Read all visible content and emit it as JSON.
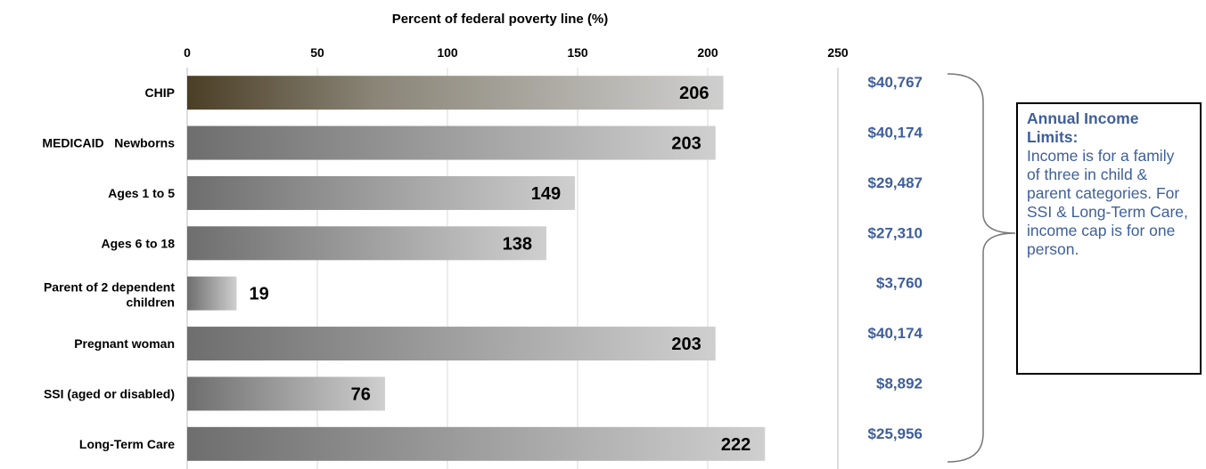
{
  "chart_data": {
    "type": "bar",
    "orientation": "horizontal",
    "title": "Percent of federal poverty line (%)",
    "xlim": [
      0,
      250
    ],
    "x_ticks": [
      "0",
      "50",
      "100",
      "150",
      "200",
      "250"
    ],
    "categories": [
      "CHIP",
      "MEDICAID   Newborns",
      "Ages 1 to 5",
      "Ages 6 to 18",
      "Parent of 2 dependent children",
      "Pregnant woman",
      "SSI (aged or disabled)",
      "Long-Term Care"
    ],
    "values": [
      206,
      203,
      149,
      138,
      19,
      203,
      76,
      222
    ],
    "value_labels": [
      "206",
      "203",
      "149",
      "138",
      "19",
      "203",
      "76",
      "222"
    ],
    "income_limits": [
      "$40,767",
      "$40,174",
      "$29,487",
      "$27,310",
      "$3,760",
      "$40,174",
      "$8,892",
      "$25,956"
    ],
    "grid": true,
    "bar_color": "#9a9a9a",
    "income_color": "#3f5f9a"
  },
  "note": {
    "title": "Annual Income Limits:",
    "body": "Income is for a family of three in child & parent categories. For SSI & Long-Term Care, income cap is for one person."
  }
}
